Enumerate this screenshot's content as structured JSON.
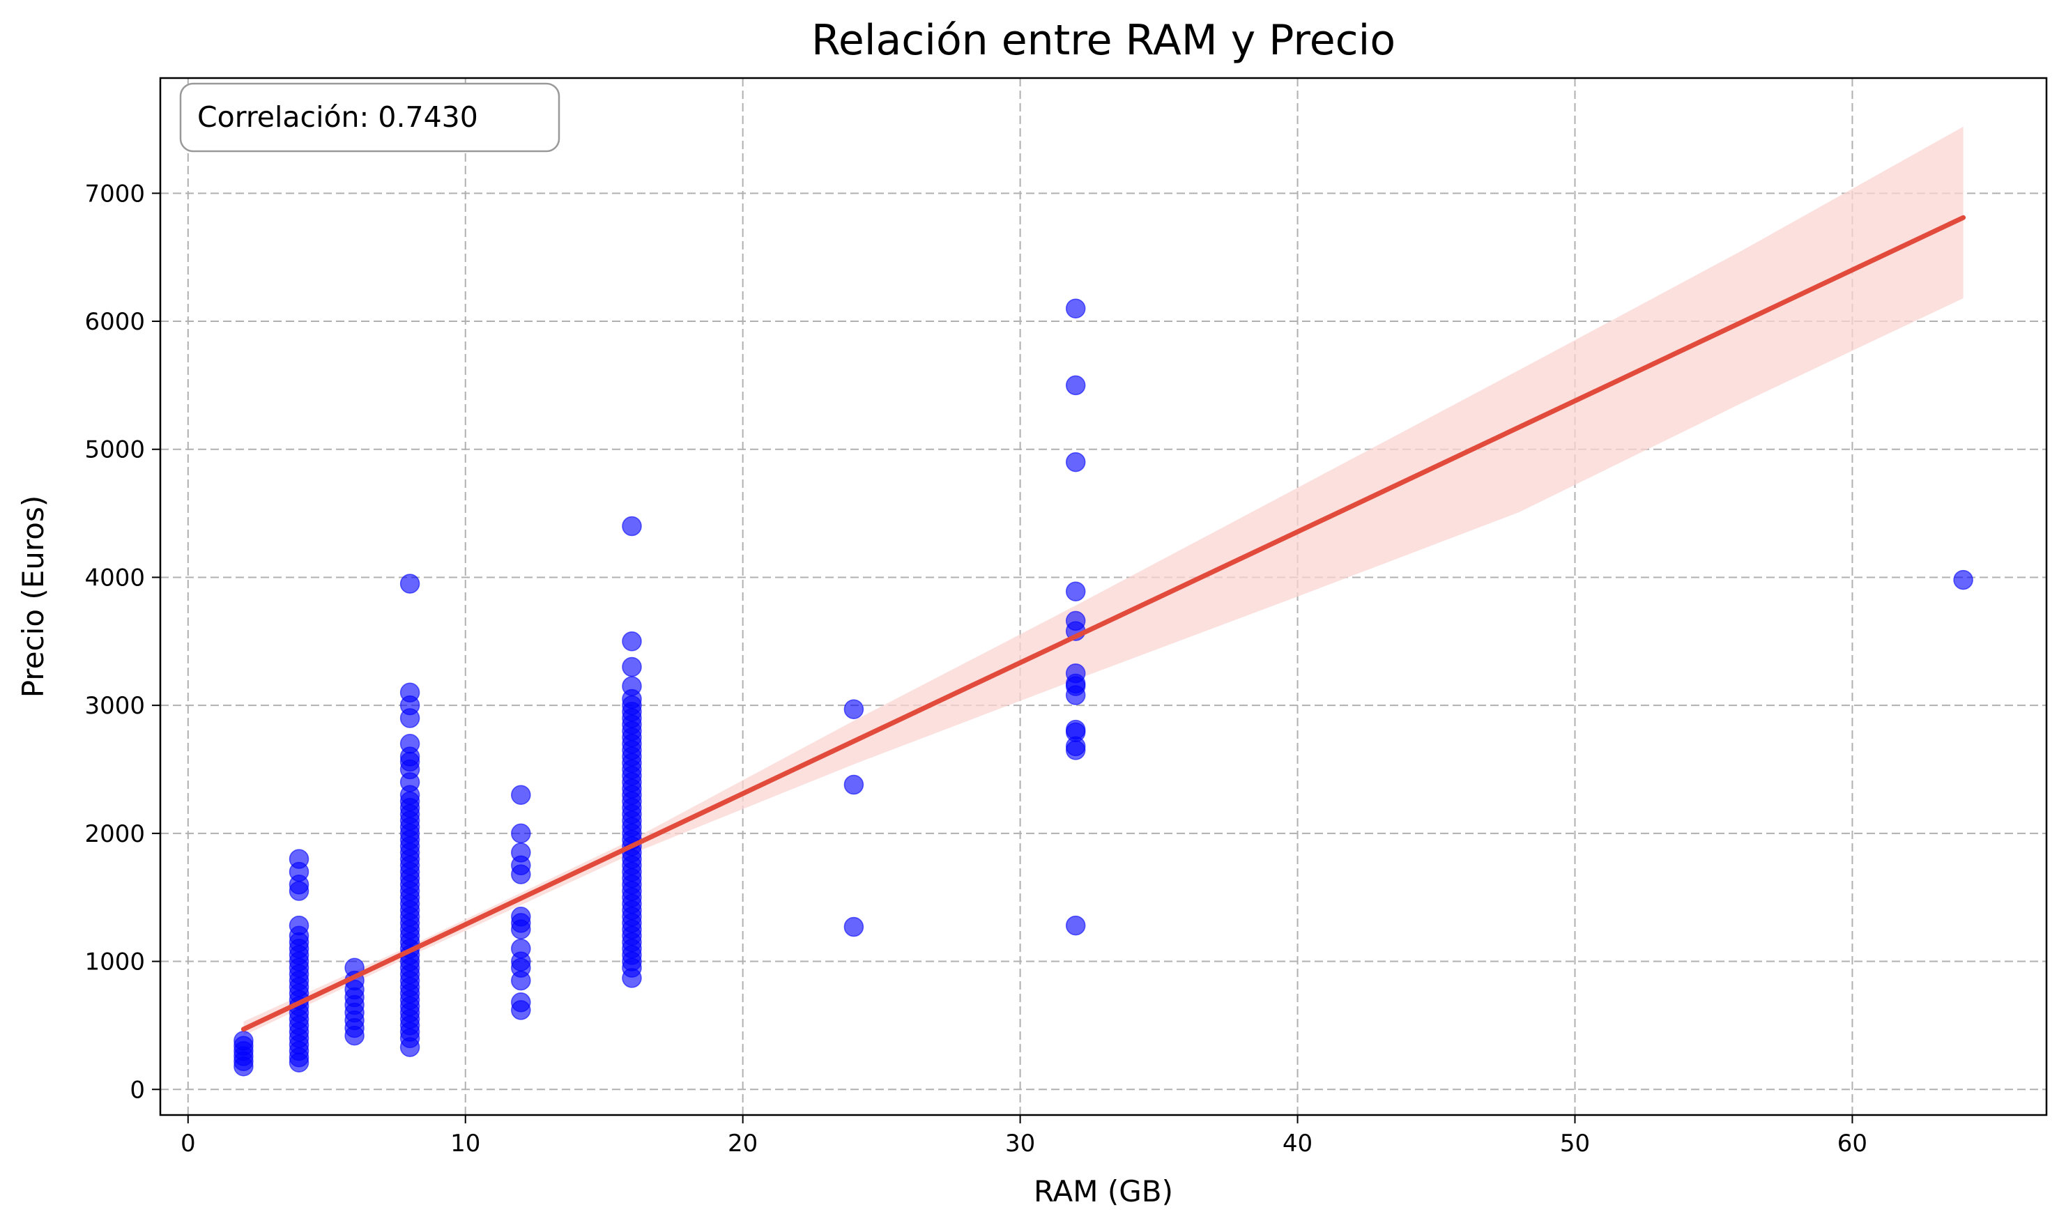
{
  "chart_data": {
    "type": "scatter",
    "title": "Relación entre RAM y Precio",
    "xlabel": "RAM (GB)",
    "ylabel": "Precio (Euros)",
    "xlim": [
      -1,
      67
    ],
    "ylim": [
      -200,
      7900
    ],
    "xticks": [
      0,
      10,
      20,
      30,
      40,
      50,
      60
    ],
    "yticks": [
      0,
      1000,
      2000,
      3000,
      4000,
      5000,
      6000,
      7000
    ],
    "grid": true,
    "annotation": "Correlación: 0.7430",
    "colors": {
      "points": "#0000ff",
      "regression": "#e24a3b",
      "confidence_band": "#f9d6d3",
      "grid": "#b0b0b0"
    },
    "series": [
      {
        "type": "scatter",
        "points": [
          [
            2,
            180
          ],
          [
            2,
            220
          ],
          [
            2,
            260
          ],
          [
            2,
            300
          ],
          [
            2,
            340
          ],
          [
            2,
            380
          ],
          [
            4,
            210
          ],
          [
            4,
            250
          ],
          [
            4,
            300
          ],
          [
            4,
            350
          ],
          [
            4,
            400
          ],
          [
            4,
            450
          ],
          [
            4,
            500
          ],
          [
            4,
            550
          ],
          [
            4,
            600
          ],
          [
            4,
            650
          ],
          [
            4,
            700
          ],
          [
            4,
            750
          ],
          [
            4,
            800
          ],
          [
            4,
            850
          ],
          [
            4,
            900
          ],
          [
            4,
            950
          ],
          [
            4,
            1000
          ],
          [
            4,
            1050
          ],
          [
            4,
            1100
          ],
          [
            4,
            1150
          ],
          [
            4,
            1200
          ],
          [
            4,
            1280
          ],
          [
            4,
            1550
          ],
          [
            4,
            1600
          ],
          [
            4,
            1700
          ],
          [
            4,
            1800
          ],
          [
            6,
            420
          ],
          [
            6,
            480
          ],
          [
            6,
            540
          ],
          [
            6,
            600
          ],
          [
            6,
            660
          ],
          [
            6,
            720
          ],
          [
            6,
            780
          ],
          [
            6,
            850
          ],
          [
            6,
            950
          ],
          [
            8,
            330
          ],
          [
            8,
            400
          ],
          [
            8,
            450
          ],
          [
            8,
            500
          ],
          [
            8,
            550
          ],
          [
            8,
            600
          ],
          [
            8,
            650
          ],
          [
            8,
            700
          ],
          [
            8,
            750
          ],
          [
            8,
            800
          ],
          [
            8,
            850
          ],
          [
            8,
            900
          ],
          [
            8,
            950
          ],
          [
            8,
            1000
          ],
          [
            8,
            1050
          ],
          [
            8,
            1100
          ],
          [
            8,
            1150
          ],
          [
            8,
            1200
          ],
          [
            8,
            1250
          ],
          [
            8,
            1300
          ],
          [
            8,
            1350
          ],
          [
            8,
            1400
          ],
          [
            8,
            1450
          ],
          [
            8,
            1500
          ],
          [
            8,
            1550
          ],
          [
            8,
            1600
          ],
          [
            8,
            1650
          ],
          [
            8,
            1700
          ],
          [
            8,
            1750
          ],
          [
            8,
            1800
          ],
          [
            8,
            1850
          ],
          [
            8,
            1900
          ],
          [
            8,
            1950
          ],
          [
            8,
            2000
          ],
          [
            8,
            2050
          ],
          [
            8,
            2100
          ],
          [
            8,
            2150
          ],
          [
            8,
            2200
          ],
          [
            8,
            2250
          ],
          [
            8,
            2300
          ],
          [
            8,
            2400
          ],
          [
            8,
            2500
          ],
          [
            8,
            2560
          ],
          [
            8,
            2600
          ],
          [
            8,
            2700
          ],
          [
            8,
            2900
          ],
          [
            8,
            3000
          ],
          [
            8,
            3100
          ],
          [
            8,
            3950
          ],
          [
            12,
            620
          ],
          [
            12,
            680
          ],
          [
            12,
            850
          ],
          [
            12,
            950
          ],
          [
            12,
            1000
          ],
          [
            12,
            1100
          ],
          [
            12,
            1250
          ],
          [
            12,
            1300
          ],
          [
            12,
            1350
          ],
          [
            12,
            1680
          ],
          [
            12,
            1750
          ],
          [
            12,
            1850
          ],
          [
            12,
            2000
          ],
          [
            12,
            2300
          ],
          [
            16,
            870
          ],
          [
            16,
            950
          ],
          [
            16,
            1000
          ],
          [
            16,
            1050
          ],
          [
            16,
            1100
          ],
          [
            16,
            1150
          ],
          [
            16,
            1200
          ],
          [
            16,
            1250
          ],
          [
            16,
            1300
          ],
          [
            16,
            1350
          ],
          [
            16,
            1400
          ],
          [
            16,
            1450
          ],
          [
            16,
            1500
          ],
          [
            16,
            1550
          ],
          [
            16,
            1600
          ],
          [
            16,
            1650
          ],
          [
            16,
            1700
          ],
          [
            16,
            1750
          ],
          [
            16,
            1800
          ],
          [
            16,
            1850
          ],
          [
            16,
            1900
          ],
          [
            16,
            1950
          ],
          [
            16,
            2000
          ],
          [
            16,
            2050
          ],
          [
            16,
            2100
          ],
          [
            16,
            2150
          ],
          [
            16,
            2200
          ],
          [
            16,
            2250
          ],
          [
            16,
            2300
          ],
          [
            16,
            2350
          ],
          [
            16,
            2400
          ],
          [
            16,
            2450
          ],
          [
            16,
            2500
          ],
          [
            16,
            2550
          ],
          [
            16,
            2600
          ],
          [
            16,
            2650
          ],
          [
            16,
            2700
          ],
          [
            16,
            2750
          ],
          [
            16,
            2800
          ],
          [
            16,
            2850
          ],
          [
            16,
            2900
          ],
          [
            16,
            2950
          ],
          [
            16,
            3000
          ],
          [
            16,
            3050
          ],
          [
            16,
            3150
          ],
          [
            16,
            3300
          ],
          [
            16,
            3500
          ],
          [
            16,
            4400
          ],
          [
            24,
            1270
          ],
          [
            24,
            2380
          ],
          [
            24,
            2970
          ],
          [
            32,
            1280
          ],
          [
            32,
            2650
          ],
          [
            32,
            2680
          ],
          [
            32,
            2790
          ],
          [
            32,
            2810
          ],
          [
            32,
            3080
          ],
          [
            32,
            3150
          ],
          [
            32,
            3170
          ],
          [
            32,
            3250
          ],
          [
            32,
            3580
          ],
          [
            32,
            3660
          ],
          [
            32,
            3890
          ],
          [
            32,
            4900
          ],
          [
            32,
            5500
          ],
          [
            32,
            6100
          ],
          [
            64,
            3980
          ]
        ]
      },
      {
        "type": "line",
        "x": [
          2,
          64
        ],
        "y": [
          470,
          6810
        ]
      },
      {
        "type": "area",
        "x": [
          2,
          8,
          16,
          24,
          32,
          40,
          48,
          56,
          64
        ],
        "lower": [
          420,
          1040,
          1840,
          2540,
          3200,
          3850,
          4510,
          5360,
          6180
        ],
        "upper": [
          530,
          1120,
          1950,
          2880,
          3780,
          4700,
          5620,
          6550,
          7520
        ]
      }
    ]
  }
}
